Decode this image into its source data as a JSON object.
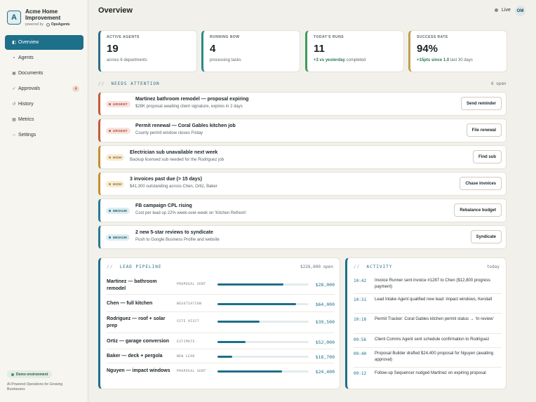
{
  "brand": {
    "logo_letter": "A",
    "name": "Acme Home Improvement",
    "powered_by": "powered by",
    "powered_name": "OpsAgents"
  },
  "nav": [
    {
      "label": "Overview",
      "icon": "grid-icon",
      "active": true
    },
    {
      "label": "Agents",
      "icon": "agents-icon"
    },
    {
      "label": "Documents",
      "icon": "documents-icon"
    },
    {
      "label": "Approvals",
      "icon": "check-icon",
      "badge": "4"
    },
    {
      "label": "History",
      "icon": "history-icon"
    },
    {
      "label": "Metrics",
      "icon": "metrics-icon"
    },
    {
      "label": "Settings",
      "icon": "settings-icon"
    }
  ],
  "footer": {
    "demo_label": "Demo environment",
    "tagline": "AI-Powered Operations for Growing Businesses"
  },
  "header": {
    "title": "Overview",
    "live_label": "Live",
    "avatar_initials": "OM"
  },
  "stats": [
    {
      "label": "ACTIVE AGENTS",
      "value": "19",
      "sub": "across 6 departments",
      "color": "#2a6e86"
    },
    {
      "label": "RUNNING NOW",
      "value": "4",
      "sub": "processing tasks",
      "color": "#2a8a8a"
    },
    {
      "label": "TODAY'S RUNS",
      "value": "11",
      "sub_bold": "+3 vs yesterday",
      "sub": " completed",
      "color": "#3f9a5c"
    },
    {
      "label": "SUCCESS RATE",
      "value": "94%",
      "sub_bold": "+15pts since 1.0",
      "sub": " last 30 days",
      "color": "#c0a050"
    }
  ],
  "attention": {
    "heading_prefix": "//",
    "heading": "NEEDS ATTENTION",
    "count": "6 open",
    "items": [
      {
        "priority": "URGENT",
        "level": "urgent",
        "title": "Martinez bathroom remodel — proposal expiring",
        "desc": "$28K proposal awaiting client signature, expires in 2 days",
        "action": "Send reminder"
      },
      {
        "priority": "URGENT",
        "level": "urgent",
        "title": "Permit renewal — Coral Gables kitchen job",
        "desc": "County permit window closes Friday",
        "action": "File renewal"
      },
      {
        "priority": "HIGH",
        "level": "high",
        "title": "Electrician sub unavailable next week",
        "desc": "Backup licensed sub needed for the Rodriguez job",
        "action": "Find sub"
      },
      {
        "priority": "HIGH",
        "level": "high",
        "title": "3 invoices past due (> 15 days)",
        "desc": "$41,300 outstanding across Chen, Ortiz, Baker",
        "action": "Chase invoices"
      },
      {
        "priority": "MEDIUM",
        "level": "medium",
        "title": "FB campaign CPL rising",
        "desc": "Cost per lead up 22% week-over-week on 'Kitchen Refresh'",
        "action": "Rebalance budget"
      },
      {
        "priority": "MEDIUM",
        "level": "medium",
        "title": "2 new 5-star reviews to syndicate",
        "desc": "Push to Google Business Profile and website",
        "action": "Syndicate"
      }
    ],
    "colors": {
      "urgent": "#c45a3c",
      "high": "#c0902e",
      "medium": "#2a7a90"
    }
  },
  "pipeline": {
    "heading_prefix": "//",
    "heading": "LEAD PIPELINE",
    "total": "$226,600 open",
    "rows": [
      {
        "name": "Martinez — bathroom remodel",
        "stage": "PROPOSAL SENT",
        "progress": 0.72,
        "value": "$28,000"
      },
      {
        "name": "Chen — full kitchen",
        "stage": "NEGOTIATION",
        "progress": 0.86,
        "value": "$64,000"
      },
      {
        "name": "Rodriguez — roof + solar prep",
        "stage": "SITE VISIT",
        "progress": 0.46,
        "value": "$39,500"
      },
      {
        "name": "Ortiz — garage conversion",
        "stage": "ESTIMATE",
        "progress": 0.31,
        "value": "$52,000"
      },
      {
        "name": "Baker — deck + pergola",
        "stage": "NEW LEAD",
        "progress": 0.16,
        "value": "$18,700"
      },
      {
        "name": "Nguyen — impact windows",
        "stage": "PROPOSAL SENT",
        "progress": 0.71,
        "value": "$24,400"
      }
    ]
  },
  "activity": {
    "heading_prefix": "//",
    "heading": "ACTIVITY",
    "period": "today",
    "items": [
      {
        "time": "10:42",
        "text": "Invoice Runner sent invoice #1287 to Chen ($12,800 progress payment)"
      },
      {
        "time": "10:31",
        "text": "Lead Intake Agent qualified new lead: impact windows, Kendall"
      },
      {
        "time": "10:18",
        "text": "Permit Tracker: Coral Gables kitchen permit status → 'In review'"
      },
      {
        "time": "09:56",
        "text": "Client Comms Agent sent schedule confirmation to Rodriguez"
      },
      {
        "time": "09:40",
        "text": "Proposal Builder drafted $24,400 proposal for Nguyen (awaiting approval)"
      },
      {
        "time": "09:12",
        "text": "Follow-up Sequencer nudged Martinez on expiring proposal"
      }
    ]
  }
}
